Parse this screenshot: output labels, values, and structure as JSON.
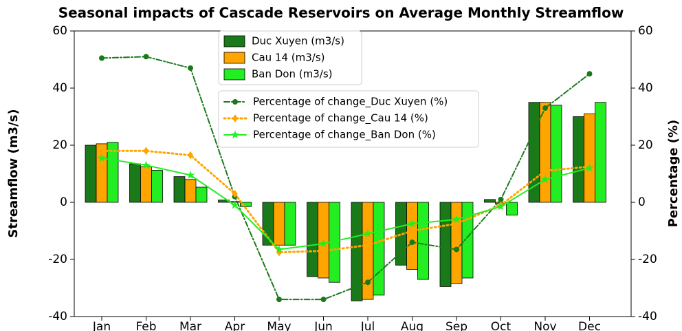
{
  "chart_data": {
    "type": "bar",
    "title": "Seasonal impacts of Cascade Reservoirs on Average Monthly Streamflow",
    "y_label": "Streamflow (m3/s)",
    "y2_label": "Percentage (%)",
    "categories": [
      "Jan",
      "Feb",
      "Mar",
      "Apr",
      "May",
      "Jun",
      "Jul",
      "Aug",
      "Sep",
      "Oct",
      "Nov",
      "Dec"
    ],
    "ylim": [
      -40,
      60
    ],
    "yticks": [
      -40,
      -20,
      0,
      20,
      40,
      60
    ],
    "y2lim": [
      -40,
      60
    ],
    "y2ticks": [
      -40,
      -20,
      0,
      20,
      40,
      60
    ],
    "series": [
      {
        "name": "Duc Xuyen (m3/s)",
        "color": "#1a7a1a",
        "values": [
          20,
          13.5,
          9,
          0.8,
          -15,
          -26,
          -34.5,
          -22,
          -29.5,
          1,
          35,
          30
        ]
      },
      {
        "name": "Cau 14 (m3/s)",
        "color": "#ffa500",
        "values": [
          20.5,
          12.5,
          8,
          0.3,
          -15,
          -26.5,
          -34,
          -23.5,
          -28.5,
          -0.5,
          35,
          31
        ]
      },
      {
        "name": "Ban Don (m3/s)",
        "color": "#22ee22",
        "values": [
          21,
          11.2,
          5.3,
          -1.5,
          -15,
          -28,
          -32.5,
          -27,
          -26.5,
          -4.5,
          34,
          35
        ]
      },
      {
        "name": "Percentage of change_Duc Xuyen (%)",
        "color": "#1a7a1a",
        "axis": "y2",
        "linestyle": "dashdot",
        "marker": "circle",
        "values": [
          50.5,
          51,
          47,
          2,
          -34,
          -34,
          -28,
          -14,
          -16.5,
          1,
          33,
          45
        ]
      },
      {
        "name": "Percentage of change_Cau 14 (%)",
        "color": "#ffa500",
        "axis": "y2",
        "linestyle": "dotted",
        "marker": "diamond",
        "values": [
          18,
          18,
          16.5,
          3,
          -17.5,
          -17,
          -15,
          -10,
          -7.5,
          -1,
          11,
          12.5
        ]
      },
      {
        "name": "Percentage of change_Ban Don (%)",
        "color": "#22ee22",
        "axis": "y2",
        "linestyle": "solid",
        "marker": "star",
        "values": [
          15.5,
          13,
          9.5,
          -1,
          -16.5,
          -14.5,
          -11,
          -7.5,
          -6,
          -1.5,
          8,
          12
        ]
      }
    ]
  }
}
